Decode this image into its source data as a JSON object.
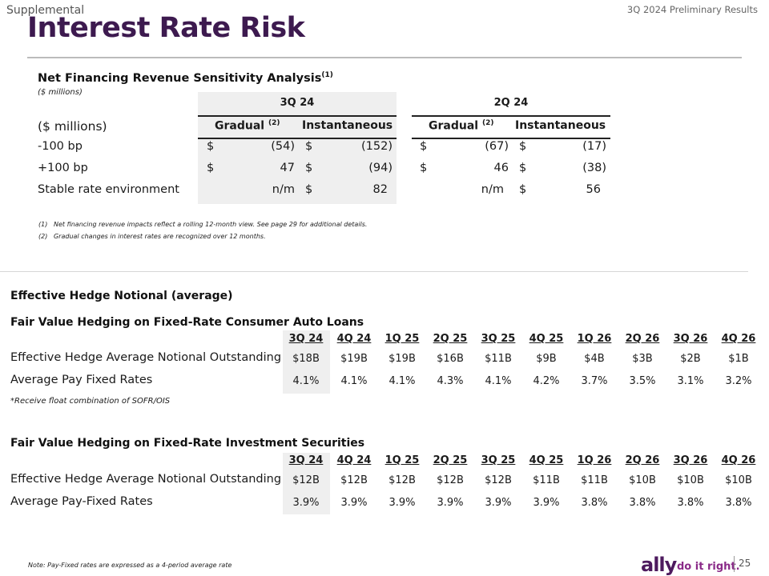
{
  "header": {
    "supplemental": "Supplemental",
    "prelim": "3Q 2024 Preliminary Results",
    "title": "Interest Rate Risk"
  },
  "sensitivity": {
    "title": "Net Financing Revenue Sensitivity Analysis",
    "title_sup": "(1)",
    "units": "($ millions)",
    "period_3q": "3Q 24",
    "period_2q": "2Q 24",
    "row_header": "($ millions)",
    "gradual": "Gradual",
    "gradual_sup": "(2)",
    "instantaneous": "Instantaneous",
    "rows": [
      {
        "label": "-100 bp",
        "q3_grad_cur": "$",
        "q3_grad": "(54)",
        "q3_inst_cur": "$",
        "q3_inst": "(152)",
        "q2_grad_cur": "$",
        "q2_grad": "(67)",
        "q2_inst_cur": "$",
        "q2_inst": "(17)"
      },
      {
        "label": "+100 bp",
        "q3_grad_cur": "$",
        "q3_grad": "47",
        "q3_inst_cur": "$",
        "q3_inst": "(94)",
        "q2_grad_cur": "$",
        "q2_grad": "46",
        "q2_inst_cur": "$",
        "q2_inst": "(38)"
      },
      {
        "label": "Stable rate environment",
        "q3_grad_cur": "",
        "q3_grad": "n/m",
        "q3_inst_cur": "$",
        "q3_inst": "82",
        "q2_grad_cur": "",
        "q2_grad": "n/m",
        "q2_inst_cur": "$",
        "q2_inst": "56"
      }
    ],
    "footnotes": [
      {
        "num": "(1)",
        "text": "Net financing revenue impacts reflect a rolling 12-month view. See page 29 for additional details."
      },
      {
        "num": "(2)",
        "text": "Gradual changes in interest rates are recognized over 12 months."
      }
    ]
  },
  "hedge": {
    "title": "Effective Hedge Notional (average)",
    "quarters": [
      "3Q 24",
      "4Q 24",
      "1Q 25",
      "2Q 25",
      "3Q 25",
      "4Q 25",
      "1Q 26",
      "2Q 26",
      "3Q 26",
      "4Q 26"
    ],
    "auto": {
      "title": "Fair Value Hedging on Fixed-Rate Consumer Auto Loans",
      "row1_label": "Effective Hedge Average Notional Outstanding",
      "row1": [
        "$18B",
        "$19B",
        "$19B",
        "$16B",
        "$11B",
        "$9B",
        "$4B",
        "$3B",
        "$2B",
        "$1B"
      ],
      "row2_label": "Average Pay Fixed Rates",
      "row2": [
        "4.1%",
        "4.1%",
        "4.1%",
        "4.3%",
        "4.1%",
        "4.2%",
        "3.7%",
        "3.5%",
        "3.1%",
        "3.2%"
      ],
      "note": "*Receive float combination of SOFR/OIS"
    },
    "securities": {
      "title": "Fair Value Hedging on Fixed-Rate Investment Securities",
      "row1_label": "Effective Hedge Average Notional Outstanding",
      "row1": [
        "$12B",
        "$12B",
        "$12B",
        "$12B",
        "$12B",
        "$11B",
        "$11B",
        "$10B",
        "$10B",
        "$10B"
      ],
      "row2_label": "Average Pay-Fixed Rates",
      "row2": [
        "3.9%",
        "3.9%",
        "3.9%",
        "3.9%",
        "3.9%",
        "3.9%",
        "3.8%",
        "3.8%",
        "3.8%",
        "3.8%"
      ]
    }
  },
  "footer": {
    "note": "Note: Pay-Fixed rates are expressed as a 4-period average rate",
    "logo": "ally",
    "tagline": "do it right.",
    "page": "25"
  }
}
